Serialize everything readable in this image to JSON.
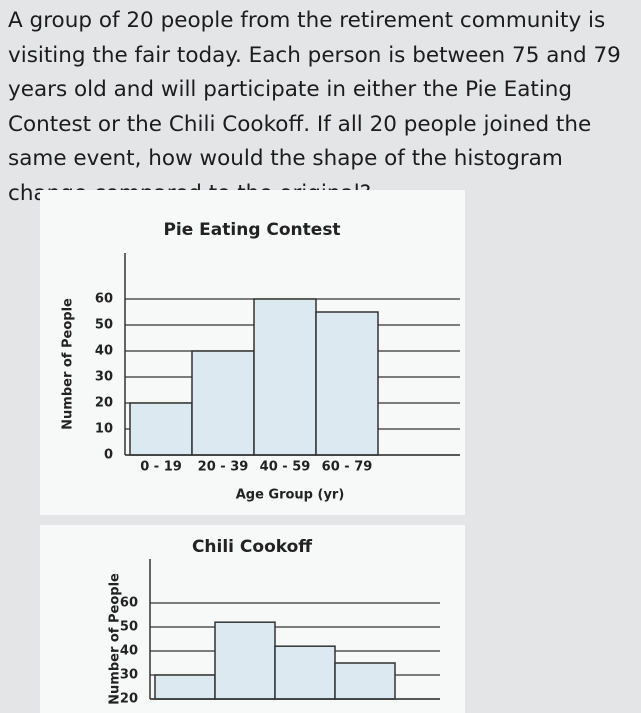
{
  "question": "A group of 20 people from the retirement community is visiting the fair today. Each person is between 75 and 79 years old and will participate in either the Pie Eating Contest or the Chili Cookoff. If all 20 people joined the same event, how would the shape of the histogram change compared to the original?",
  "chart_data": [
    {
      "type": "bar",
      "title": "Pie Eating Contest",
      "xlabel": "Age Group (yr)",
      "ylabel": "Number of People",
      "categories": [
        "0 - 19",
        "20 - 39",
        "40 - 59",
        "60 - 79"
      ],
      "values": [
        20,
        40,
        60,
        55
      ],
      "color": "#dde9f1",
      "ylim": [
        0,
        70
      ],
      "yticks": [
        0,
        10,
        20,
        30,
        40,
        50,
        60
      ],
      "grid": true
    },
    {
      "type": "bar",
      "title": "Chili Cookoff",
      "ylabel": "Number of People",
      "categories": [
        null,
        null,
        null,
        null
      ],
      "values": [
        30,
        52,
        42,
        35
      ],
      "color": "#dde9f1",
      "ylim": [
        20,
        70
      ],
      "yticks": [
        20,
        30,
        40,
        50,
        60
      ],
      "grid": true
    }
  ]
}
